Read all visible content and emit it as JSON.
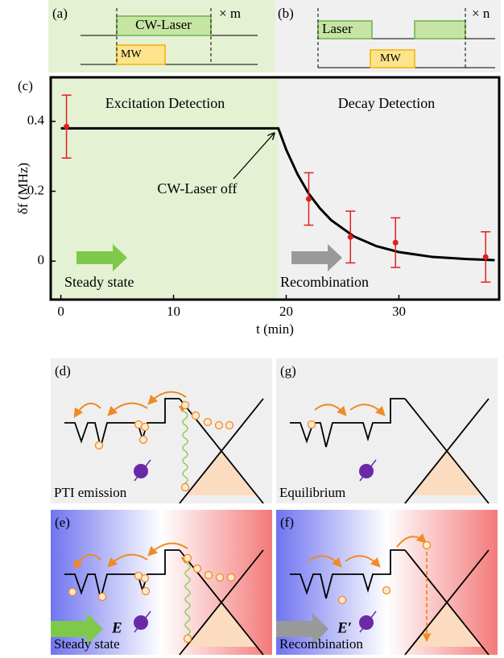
{
  "chart_data": {
    "type": "scatter",
    "panel_label": "(c)",
    "xlabel": "t (min)",
    "ylabel": "δf (MHz)",
    "annotations": [
      "Excitation Detection",
      "Decay Detection",
      "CW-Laser off",
      "Steady state",
      "Recombination"
    ],
    "xlim": [
      -0.9,
      38.9
    ],
    "xticks": [
      0,
      10,
      20,
      30
    ],
    "ylim": [
      -0.11,
      0.526
    ],
    "yticks": [
      0,
      0.2,
      0.4
    ],
    "series": [
      {
        "mode": "line",
        "color": "#000000",
        "x": [
          0,
          19.3,
          20,
          21,
          22,
          23,
          24,
          26,
          28,
          30,
          33,
          36,
          38.5
        ],
        "values": [
          0.38,
          0.38,
          0.319,
          0.249,
          0.193,
          0.151,
          0.117,
          0.071,
          0.043,
          0.026,
          0.012,
          0.006,
          0.003
        ]
      },
      {
        "mode": "markers",
        "color": "#e02020",
        "x": [
          0.5,
          22,
          25.7,
          29.7,
          37.7
        ],
        "values": [
          0.385,
          0.178,
          0.069,
          0.053,
          0.012
        ],
        "errors": [
          0.09,
          0.075,
          0.074,
          0.071,
          0.072
        ]
      }
    ]
  },
  "diagrams": {
    "a": {
      "label": "(a)",
      "laser": "CW-Laser",
      "mw": "MW",
      "repeat": "× m"
    },
    "b": {
      "label": "(b)",
      "laser": "Laser",
      "mw": "MW",
      "repeat": "× n"
    },
    "d": {
      "label": "(d)",
      "caption": "PTI emission"
    },
    "g": {
      "label": "(g)",
      "caption": "Equilibrium"
    },
    "e": {
      "label": "(e)",
      "caption": "Steady state",
      "field": "E"
    },
    "f": {
      "label": "(f)",
      "caption": "Recombination",
      "field": "E′"
    }
  }
}
